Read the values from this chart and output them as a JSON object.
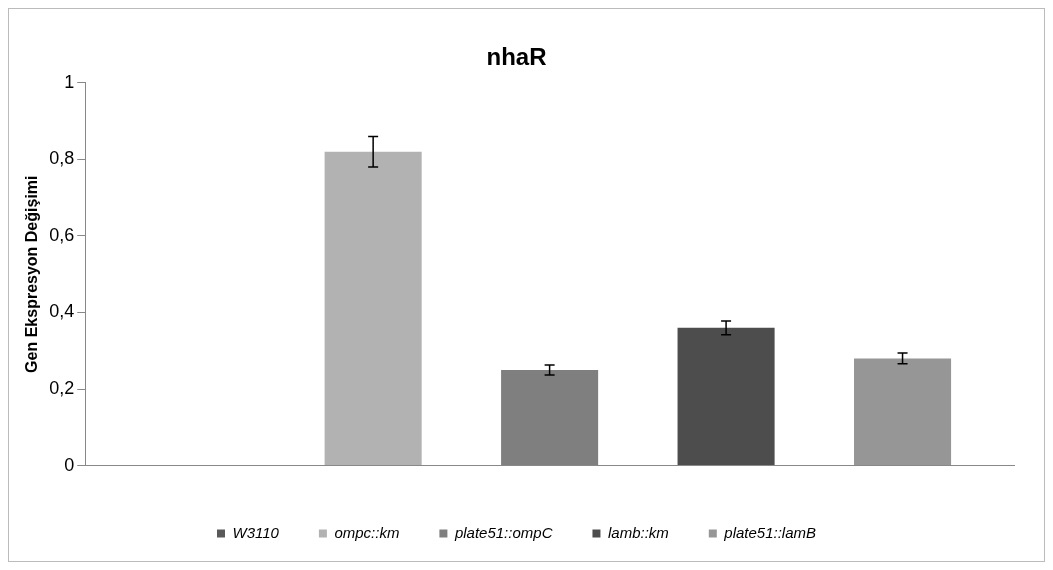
{
  "chart_data": {
    "type": "bar",
    "title": "nhaR",
    "ylabel": "Gen Ekspresyon Değişimi",
    "categories": [
      null
    ],
    "series": [
      {
        "name": "W3110",
        "color": "#595959",
        "values": [
          0
        ],
        "errors": [
          null
        ]
      },
      {
        "name": "ompc::km",
        "color": "#b2b2b2",
        "values": [
          0.82
        ],
        "errors": [
          0.04
        ]
      },
      {
        "name": "plate51::ompC",
        "color": "#7f7f7f",
        "values": [
          0.25
        ],
        "errors": [
          0.013
        ]
      },
      {
        "name": "lamb::km",
        "color": "#4d4d4d",
        "values": [
          0.36
        ],
        "errors": [
          0.018
        ]
      },
      {
        "name": "plate51::lamB",
        "color": "#969696",
        "values": [
          0.28
        ],
        "errors": [
          0.014
        ]
      }
    ],
    "ylim": [
      0,
      1
    ],
    "yticks": [
      0,
      {
        "value": 0.2,
        "label": "0,2"
      },
      {
        "value": 0.4,
        "label": "0,4"
      },
      {
        "value": 0.6,
        "label": "0,6"
      },
      {
        "value": 0.8,
        "label": "0,8"
      },
      1
    ],
    "grid": false,
    "legend": "bottom"
  }
}
